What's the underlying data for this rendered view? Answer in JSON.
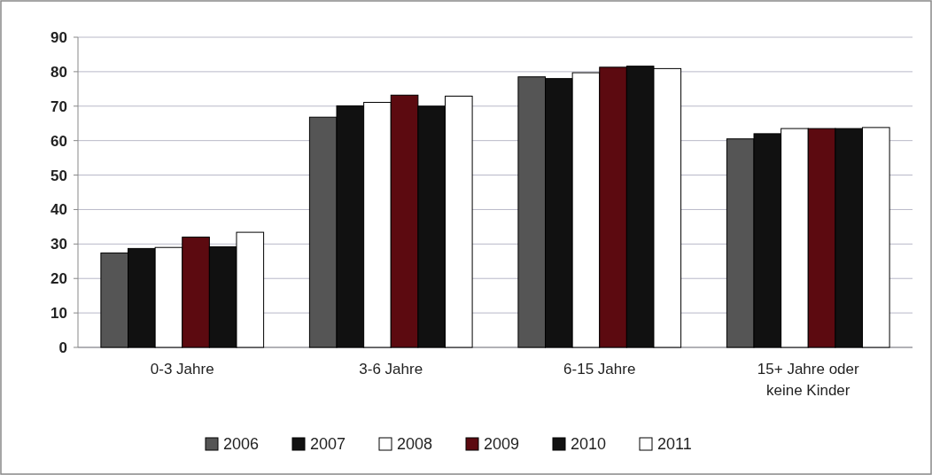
{
  "chart_data": {
    "type": "bar",
    "categories": [
      "0-3 Jahre",
      "3-6 Jahre",
      "6-15 Jahre",
      "15+ Jahre oder keine Kinder"
    ],
    "series": [
      {
        "name": "2006",
        "color": "#555555",
        "values": [
          27.4,
          66.8,
          78.5,
          60.5
        ]
      },
      {
        "name": "2007",
        "color": "#111111",
        "values": [
          28.7,
          70.1,
          78,
          62
        ]
      },
      {
        "name": "2008",
        "color": "#ffffff",
        "values": [
          29,
          71.1,
          79.7,
          63.5
        ]
      },
      {
        "name": "2009",
        "color": "#5c0a10",
        "values": [
          32,
          73.2,
          81.3,
          63.5
        ]
      },
      {
        "name": "2010",
        "color": "#111111",
        "values": [
          29.2,
          70,
          81.6,
          63.5
        ]
      },
      {
        "name": "2011",
        "color": "#ffffff",
        "values": [
          33.4,
          72.9,
          80.9,
          63.8
        ]
      }
    ],
    "ylim": [
      0,
      90
    ],
    "yticks": [
      0,
      10,
      20,
      30,
      40,
      50,
      60,
      70,
      80,
      90
    ],
    "grid": "y",
    "legend": "bottom"
  }
}
